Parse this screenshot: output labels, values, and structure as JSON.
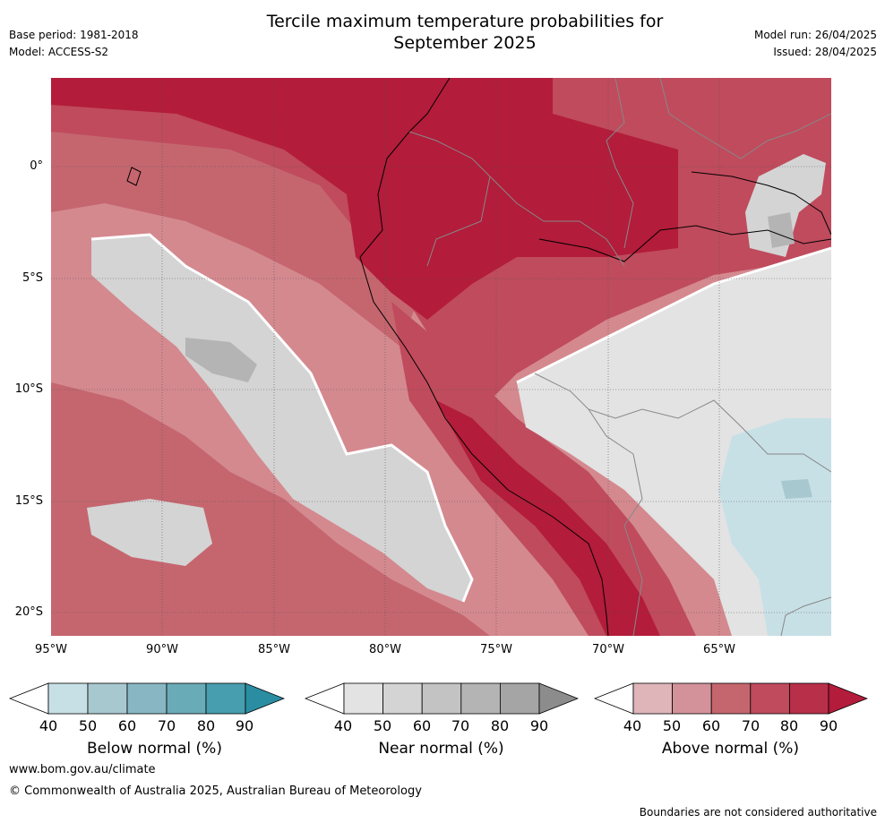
{
  "header": {
    "title_line1": "Tercile maximum temperature probabilities for",
    "title_line2": "September 2025",
    "base_period": "Base period: 1981-2018",
    "model": "Model: ACCESS-S2",
    "model_run": "Model run: 26/04/2025",
    "issued": "Issued: 28/04/2025"
  },
  "map": {
    "lat_labels": [
      "0°",
      "5°S",
      "10°S",
      "15°S",
      "20°S"
    ],
    "lon_labels": [
      "95°W",
      "90°W",
      "85°W",
      "80°W",
      "75°W",
      "70°W",
      "65°W"
    ],
    "colors": {
      "ocean_base": "#d4898f",
      "above_50": "#dfb5ba",
      "above_60": "#d3929a",
      "above_70": "#c5666f",
      "above_80": "#bf4b5d",
      "above_90": "#b31c3a",
      "near_40": "#e3e3e3",
      "near_50": "#d4d4d4",
      "near_60": "#c3c3c3",
      "near_70": "#b4b4b4",
      "near_80": "#a5a5a5",
      "below_40": "#c7e0e6",
      "below_50": "#a8c8cf"
    }
  },
  "colorbars": {
    "below": {
      "title": "Below normal (%)",
      "ticks": [
        "40",
        "50",
        "60",
        "70",
        "80",
        "90"
      ],
      "colors": [
        "#ffffff",
        "#c7e0e6",
        "#a8c8cf",
        "#88b7c3",
        "#6aabb8",
        "#469eae",
        "#2a8da2"
      ]
    },
    "near": {
      "title": "Near normal (%)",
      "ticks": [
        "40",
        "50",
        "60",
        "70",
        "80",
        "90"
      ],
      "colors": [
        "#ffffff",
        "#e3e3e3",
        "#d4d4d4",
        "#c3c3c3",
        "#b4b4b4",
        "#a5a5a5",
        "#8c8c8c"
      ]
    },
    "above": {
      "title": "Above normal (%)",
      "ticks": [
        "40",
        "50",
        "60",
        "70",
        "80",
        "90"
      ],
      "colors": [
        "#ffffff",
        "#dfb5ba",
        "#d3929a",
        "#c5666f",
        "#bf4b5d",
        "#b72f49",
        "#b31c3a"
      ]
    }
  },
  "footer": {
    "url": "www.bom.gov.au/climate",
    "copyright": "© Commonwealth of Australia 2025, Australian Bureau of Meteorology",
    "disclaimer": "Boundaries are not considered authoritative"
  }
}
